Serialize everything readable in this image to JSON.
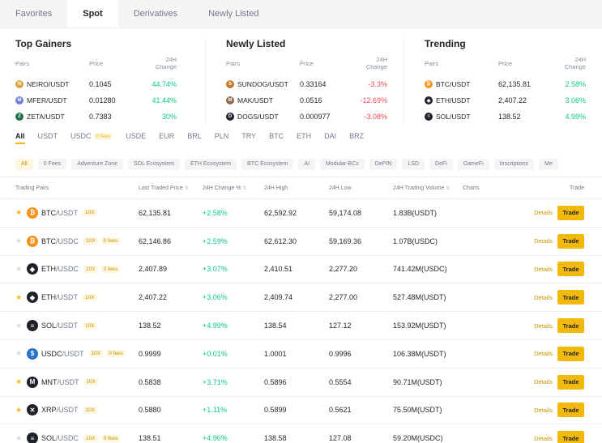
{
  "tabs": [
    {
      "label": "Favorites",
      "active": false
    },
    {
      "label": "Spot",
      "active": true
    },
    {
      "label": "Derivatives",
      "active": false
    },
    {
      "label": "Newly Listed",
      "active": false
    }
  ],
  "overview": {
    "top_gainers": {
      "title": "Top Gainers",
      "headers": {
        "pair": "Pairs",
        "price": "Price",
        "change": "24H Change"
      },
      "rows": [
        {
          "pair": "NEIRO/USDT",
          "price": "0.1045",
          "change": "44.74%",
          "dir": "pos",
          "icon": "neiro-icon",
          "color": "#d9a441",
          "glyph": "N"
        },
        {
          "pair": "MFER/USDT",
          "price": "0.01280",
          "change": "41.44%",
          "dir": "pos",
          "icon": "mfer-icon",
          "color": "#6b7fd7",
          "glyph": "M"
        },
        {
          "pair": "ZETA/USDT",
          "price": "0.7383",
          "change": "30%",
          "dir": "pos",
          "icon": "zeta-icon",
          "color": "#1f6f4a",
          "glyph": "Z"
        }
      ]
    },
    "newly_listed": {
      "title": "Newly Listed",
      "headers": {
        "pair": "Pairs",
        "price": "Price",
        "change": "24H Change"
      },
      "rows": [
        {
          "pair": "SUNDOG/USDT",
          "price": "0.33164",
          "change": "-3.3%",
          "dir": "neg",
          "icon": "sundog-icon",
          "color": "#c47a2c",
          "glyph": "S"
        },
        {
          "pair": "MAK/USDT",
          "price": "0.0516",
          "change": "-12.69%",
          "dir": "neg",
          "icon": "mak-icon",
          "color": "#8a6a4a",
          "glyph": "M"
        },
        {
          "pair": "DOGS/USDT",
          "price": "0.000977",
          "change": "-3.08%",
          "dir": "neg",
          "icon": "dogs-icon",
          "color": "#1e2329",
          "glyph": "D"
        }
      ]
    },
    "trending": {
      "title": "Trending",
      "headers": {
        "pair": "Pairs",
        "price": "Price",
        "change": "24H Change"
      },
      "rows": [
        {
          "pair": "BTC/USDT",
          "price": "62,135.81",
          "change": "2.58%",
          "dir": "pos",
          "icon": "btc-icon",
          "color": "#f7931a",
          "glyph": "₿"
        },
        {
          "pair": "ETH/USDT",
          "price": "2,407.22",
          "change": "3.06%",
          "dir": "pos",
          "icon": "eth-icon",
          "color": "#1e2329",
          "glyph": "◆"
        },
        {
          "pair": "SOL/USDT",
          "price": "138.52",
          "change": "4.99%",
          "dir": "pos",
          "icon": "sol-icon",
          "color": "#1e2329",
          "glyph": "≡"
        }
      ]
    }
  },
  "quote_tabs": [
    {
      "label": "All",
      "active": true,
      "badge": ""
    },
    {
      "label": "USDT",
      "active": false,
      "badge": ""
    },
    {
      "label": "USDC",
      "active": false,
      "badge": "0 fees"
    },
    {
      "label": "USDE",
      "active": false,
      "badge": ""
    },
    {
      "label": "EUR",
      "active": false,
      "badge": ""
    },
    {
      "label": "BRL",
      "active": false,
      "badge": ""
    },
    {
      "label": "PLN",
      "active": false,
      "badge": ""
    },
    {
      "label": "TRY",
      "active": false,
      "badge": ""
    },
    {
      "label": "BTC",
      "active": false,
      "badge": ""
    },
    {
      "label": "ETH",
      "active": false,
      "badge": ""
    },
    {
      "label": "DAI",
      "active": false,
      "badge": ""
    },
    {
      "label": "BRZ",
      "active": false,
      "badge": ""
    }
  ],
  "chips": [
    {
      "label": "All",
      "active": true
    },
    {
      "label": "0 Fees",
      "active": false
    },
    {
      "label": "Adventure Zone",
      "active": false
    },
    {
      "label": "SOL Ecosystem",
      "active": false
    },
    {
      "label": "ETH Ecosystem",
      "active": false
    },
    {
      "label": "BTC Ecosystem",
      "active": false
    },
    {
      "label": "AI",
      "active": false
    },
    {
      "label": "Modular-BCs",
      "active": false
    },
    {
      "label": "DePIN",
      "active": false
    },
    {
      "label": "LSD",
      "active": false
    },
    {
      "label": "DeFi",
      "active": false
    },
    {
      "label": "GameFi",
      "active": false
    },
    {
      "label": "Inscriptions",
      "active": false
    },
    {
      "label": "Me",
      "active": false
    }
  ],
  "table": {
    "headers": {
      "pairs": "Trading Pairs",
      "price": "Last Traded Price",
      "change": "24H Change %",
      "high": "24H High",
      "low": "24H Low",
      "volume": "24H Trading Volume",
      "charts": "Charts",
      "trade": "Trade"
    },
    "details_label": "Details",
    "trade_label": "Trade",
    "rows": [
      {
        "starred": true,
        "base": "BTC",
        "quote": "/USDT",
        "leverage": "10X",
        "fees": "",
        "price": "62,135.81",
        "change": "+2.58%",
        "high": "62,592.92",
        "low": "59,174.08",
        "volume": "1.83B(USDT)",
        "icon": "btc-icon",
        "color": "#f7931a",
        "glyph": "₿"
      },
      {
        "starred": false,
        "base": "BTC",
        "quote": "/USDC",
        "leverage": "10X",
        "fees": "0 fees",
        "price": "62,146.86",
        "change": "+2.59%",
        "high": "62,612.30",
        "low": "59,169.36",
        "volume": "1.07B(USDC)",
        "icon": "btc-icon",
        "color": "#f7931a",
        "glyph": "₿"
      },
      {
        "starred": false,
        "base": "ETH",
        "quote": "/USDC",
        "leverage": "10X",
        "fees": "0 fees",
        "price": "2,407.89",
        "change": "+3.07%",
        "high": "2,410.51",
        "low": "2,277.20",
        "volume": "741.42M(USDC)",
        "icon": "eth-icon",
        "color": "#1e2329",
        "glyph": "◆"
      },
      {
        "starred": true,
        "base": "ETH",
        "quote": "/USDT",
        "leverage": "10X",
        "fees": "",
        "price": "2,407.22",
        "change": "+3.06%",
        "high": "2,409.74",
        "low": "2,277.00",
        "volume": "527.48M(USDT)",
        "icon": "eth-icon",
        "color": "#1e2329",
        "glyph": "◆"
      },
      {
        "starred": false,
        "base": "SOL",
        "quote": "/USDT",
        "leverage": "10X",
        "fees": "",
        "price": "138.52",
        "change": "+4.99%",
        "high": "138.54",
        "low": "127.12",
        "volume": "153.92M(USDT)",
        "icon": "sol-icon",
        "color": "#1e2329",
        "glyph": "≡"
      },
      {
        "starred": false,
        "base": "USDC",
        "quote": "/USDT",
        "leverage": "10X",
        "fees": "0 fees",
        "price": "0.9999",
        "change": "+0.01%",
        "high": "1.0001",
        "low": "0.9996",
        "volume": "106.38M(USDT)",
        "icon": "usdc-icon",
        "color": "#2775ca",
        "glyph": "$"
      },
      {
        "starred": true,
        "base": "MNT",
        "quote": "/USDT",
        "leverage": "10X",
        "fees": "",
        "price": "0.5838",
        "change": "+3.71%",
        "high": "0.5896",
        "low": "0.5554",
        "volume": "90.71M(USDT)",
        "icon": "mnt-icon",
        "color": "#1e2329",
        "glyph": "M"
      },
      {
        "starred": true,
        "base": "XRP",
        "quote": "/USDT",
        "leverage": "10X",
        "fees": "",
        "price": "0.5880",
        "change": "+1.11%",
        "high": "0.5899",
        "low": "0.5621",
        "volume": "75.50M(USDT)",
        "icon": "xrp-icon",
        "color": "#1e2329",
        "glyph": "✕"
      },
      {
        "starred": false,
        "base": "SOL",
        "quote": "/USDC",
        "leverage": "10X",
        "fees": "0 fees",
        "price": "138.51",
        "change": "+4.96%",
        "high": "138.58",
        "low": "127.08",
        "volume": "59.20M(USDC)",
        "icon": "sol-icon",
        "color": "#1e2329",
        "glyph": "≡"
      }
    ]
  }
}
